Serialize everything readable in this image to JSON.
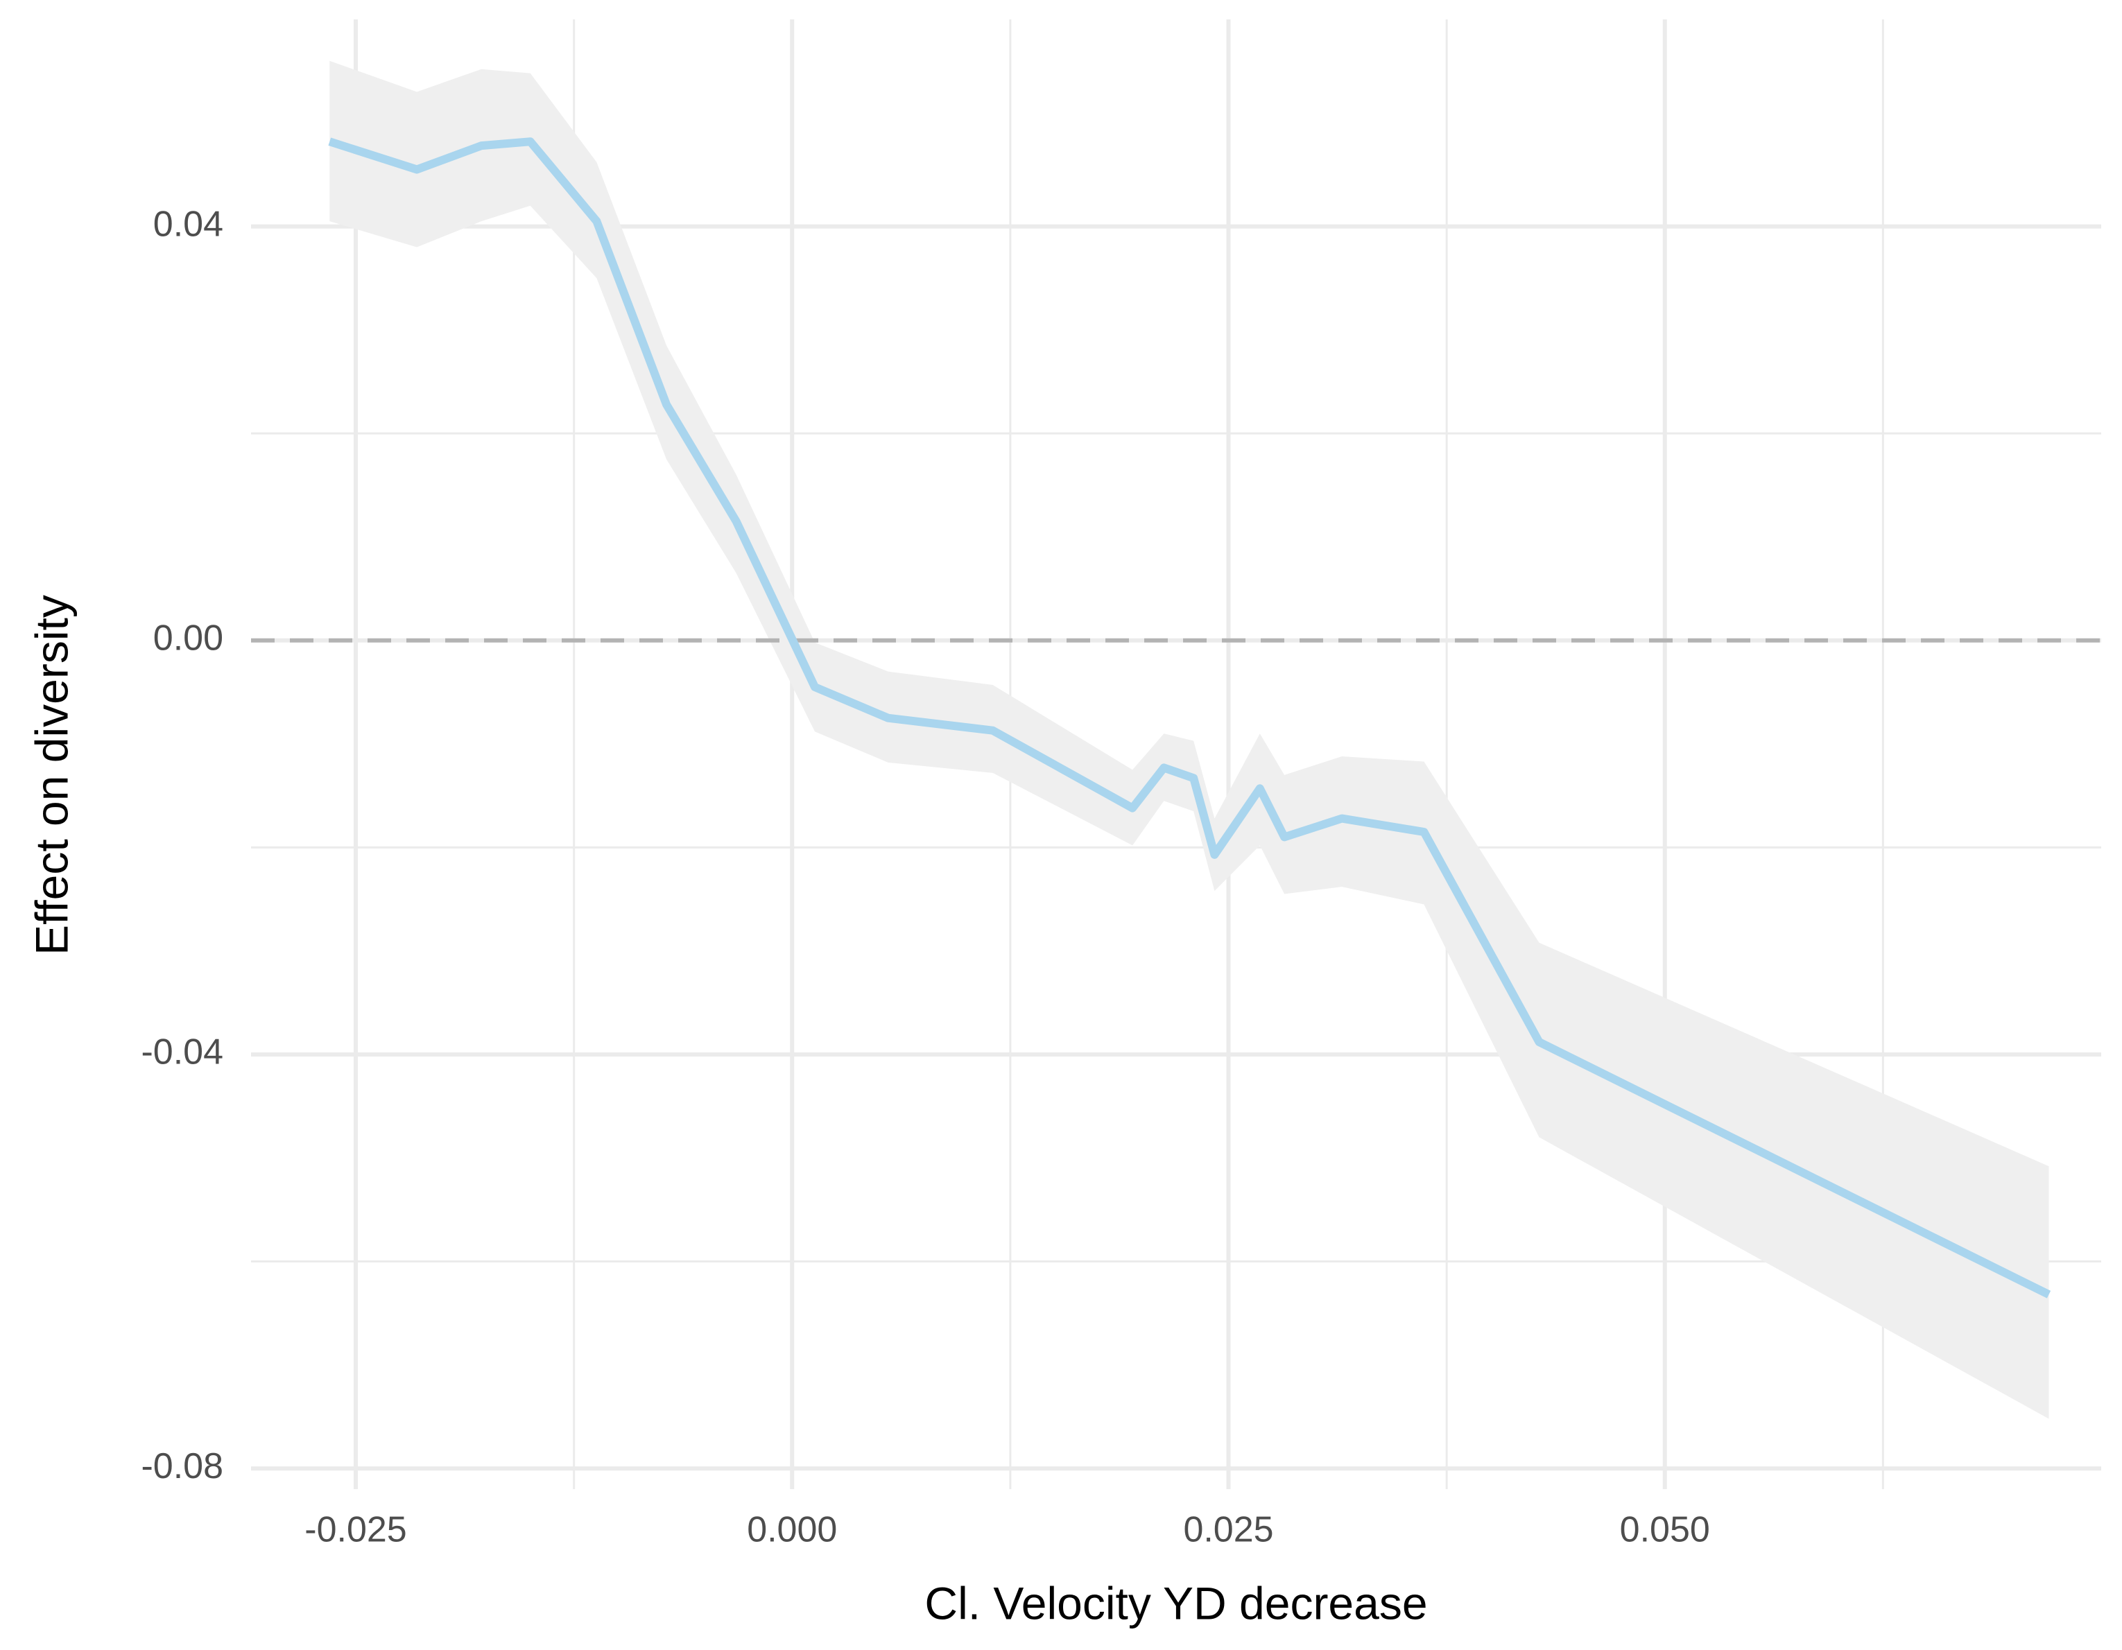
{
  "chart_data": {
    "type": "line",
    "title": "",
    "xlabel": "Cl. Velocity YD decrease",
    "ylabel": "Effect on diversity",
    "xlim": [
      -0.031,
      0.075
    ],
    "ylim": [
      -0.082,
      0.06
    ],
    "x_ticks": [
      -0.025,
      0.0,
      0.025,
      0.05
    ],
    "x_tick_labels": [
      "-0.025",
      "0.000",
      "0.025",
      "0.050"
    ],
    "y_ticks": [
      -0.08,
      -0.04,
      0.0,
      0.04
    ],
    "y_tick_labels": [
      "-0.08",
      "-0.04",
      "0.00",
      "0.04"
    ],
    "reference_line": {
      "y": 0,
      "style": "dashed"
    },
    "grid": true,
    "legend": "none",
    "colors": {
      "line": "#a9d5ee",
      "ribbon": "#efefef",
      "grid": "#ebebeb",
      "reference": "#b3b3b3"
    },
    "series": [
      {
        "x": [
          -0.0265,
          -0.0215,
          -0.0178,
          -0.015,
          -0.0112,
          -0.0072,
          -0.0032,
          0.0013,
          0.0055,
          0.0115,
          0.0195,
          0.0213,
          0.023,
          0.0242,
          0.0268,
          0.0282,
          0.0315,
          0.0362,
          0.0428,
          0.072
        ],
        "y": [
          0.0482,
          0.0455,
          0.0478,
          0.0482,
          0.0405,
          0.0228,
          0.0115,
          -0.0045,
          -0.0075,
          -0.0087,
          -0.0162,
          -0.0123,
          -0.0133,
          -0.0207,
          -0.0143,
          -0.019,
          -0.0172,
          -0.0185,
          -0.0388,
          -0.0632
        ],
        "lower": [
          0.0405,
          0.038,
          0.0405,
          0.042,
          0.035,
          0.0175,
          0.0065,
          -0.0088,
          -0.0118,
          -0.0128,
          -0.0198,
          -0.0155,
          -0.0165,
          -0.0242,
          -0.0198,
          -0.0245,
          -0.0238,
          -0.0255,
          -0.048,
          -0.0752
        ],
        "upper": [
          0.056,
          0.053,
          0.0552,
          0.0548,
          0.0462,
          0.0285,
          0.016,
          -0.0002,
          -0.003,
          -0.0043,
          -0.0125,
          -0.009,
          -0.0097,
          -0.0172,
          -0.009,
          -0.013,
          -0.0112,
          -0.0117,
          -0.0292,
          -0.0508
        ]
      }
    ]
  }
}
